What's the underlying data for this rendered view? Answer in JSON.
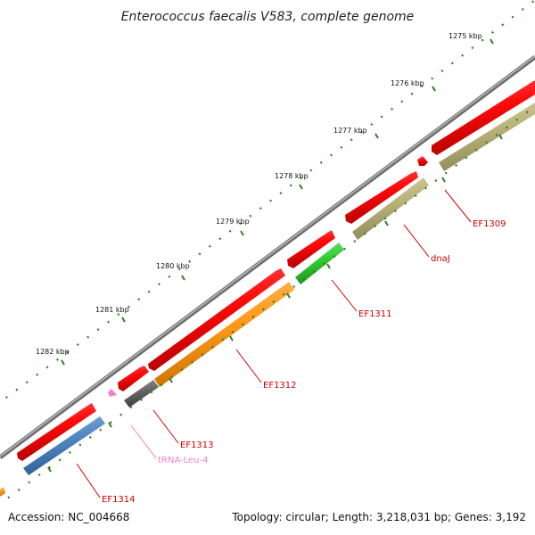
{
  "title": "Enterococcus faecalis V583, complete genome",
  "footer": {
    "accession": "Accession: NC_004668",
    "summary": "Topology: circular; Length: 3,218,031 bp; Genes: 3,192"
  },
  "ticks": [
    "1275 kbp",
    "1276 kbp",
    "1277 kbp",
    "1278 kbp",
    "1279 kbp",
    "1280 kbp",
    "1281 kbp",
    "1282 kbp"
  ],
  "genes": [
    {
      "id": "ef1309",
      "label": "EF1309",
      "color": "#cc0000"
    },
    {
      "id": "dnaj",
      "label": "dnaJ",
      "color": "#cc0000"
    },
    {
      "id": "ef1311",
      "label": "EF1311",
      "color": "#cc0000"
    },
    {
      "id": "ef1312",
      "label": "EF1312",
      "color": "#cc0000"
    },
    {
      "id": "ef1313",
      "label": "EF1313",
      "color": "#cc0000"
    },
    {
      "id": "trna",
      "label": "tRNA-Leu-4",
      "color": "#ee82c8"
    },
    {
      "id": "ef1314",
      "label": "EF1314",
      "color": "#cc0000"
    }
  ],
  "colors": {
    "backbone": "#8a8a8a",
    "cds": "#ee1111",
    "olive": "#b9b27a",
    "green": "#33cc33",
    "orange": "#ff9a1a",
    "dark_gray": "#666666",
    "blue": "#4f86bf",
    "trna": "#ee82c8",
    "tick": "#2e7d20",
    "label_red": "#cc0000"
  }
}
